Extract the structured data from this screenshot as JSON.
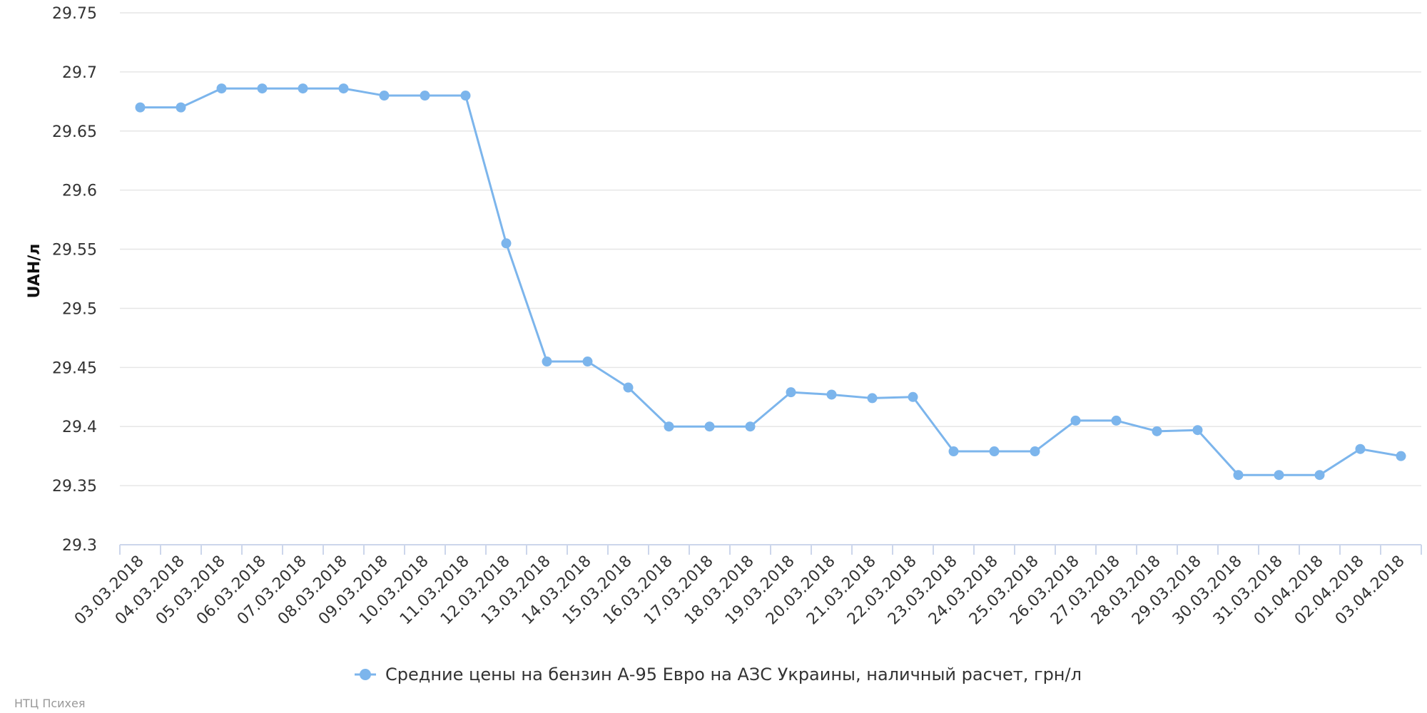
{
  "chart_data": {
    "type": "line",
    "ylabel": "UAH/л",
    "ylim": [
      29.3,
      29.75
    ],
    "yticks": [
      "29.3",
      "29.35",
      "29.4",
      "29.45",
      "29.5",
      "29.55",
      "29.6",
      "29.65",
      "29.7",
      "29.75"
    ],
    "grid": true,
    "legend_position": "bottom-center",
    "categories": [
      "03.03.2018",
      "04.03.2018",
      "05.03.2018",
      "06.03.2018",
      "07.03.2018",
      "08.03.2018",
      "09.03.2018",
      "10.03.2018",
      "11.03.2018",
      "12.03.2018",
      "13.03.2018",
      "14.03.2018",
      "15.03.2018",
      "16.03.2018",
      "17.03.2018",
      "18.03.2018",
      "19.03.2018",
      "20.03.2018",
      "21.03.2018",
      "22.03.2018",
      "23.03.2018",
      "24.03.2018",
      "25.03.2018",
      "26.03.2018",
      "27.03.2018",
      "28.03.2018",
      "29.03.2018",
      "30.03.2018",
      "31.03.2018",
      "01.04.2018",
      "02.04.2018",
      "03.04.2018"
    ],
    "series": [
      {
        "name": "Средние цены на бензин А-95 Евро на АЗС Украины, наличный расчет, грн/л",
        "color": "#7cb5ec",
        "values": [
          29.67,
          29.67,
          29.686,
          29.686,
          29.686,
          29.686,
          29.68,
          29.68,
          29.68,
          29.555,
          29.455,
          29.455,
          29.433,
          29.4,
          29.4,
          29.4,
          29.429,
          29.427,
          29.424,
          29.425,
          29.379,
          29.379,
          29.379,
          29.405,
          29.405,
          29.396,
          29.397,
          29.359,
          29.359,
          29.359,
          29.381,
          29.375
        ]
      }
    ]
  },
  "credit": "НТЦ Психея"
}
